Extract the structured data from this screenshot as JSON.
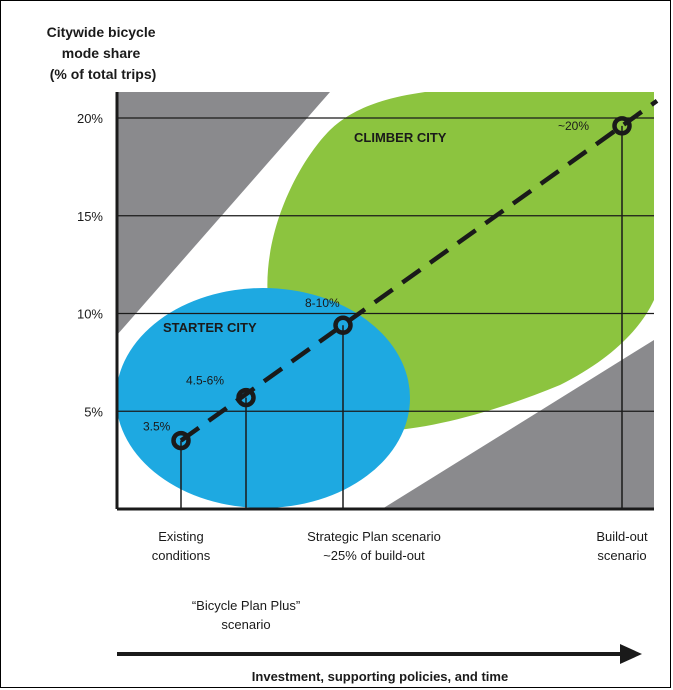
{
  "chart_data": {
    "type": "line",
    "ylabel_lines": [
      "Citywide bicycle",
      "mode share",
      "(% of total trips)"
    ],
    "xlabel": "Investment, supporting policies, and time",
    "yticks": [
      {
        "value": 5,
        "label": "5%"
      },
      {
        "value": 10,
        "label": "10%"
      },
      {
        "value": 15,
        "label": "15%"
      },
      {
        "value": 20,
        "label": "20%"
      }
    ],
    "ylim": [
      0,
      21
    ],
    "regions": [
      "STARTER CITY",
      "CLIMBER CITY"
    ],
    "points": [
      {
        "x": 1,
        "y": 3.5,
        "label": "3.5%",
        "scenario": [
          "Existing",
          "conditions"
        ]
      },
      {
        "x": 2,
        "y": 5.7,
        "label": "4.5-6%",
        "scenario": [
          "“Bicycle Plan Plus”",
          "scenario"
        ]
      },
      {
        "x": 3,
        "y": 9.4,
        "label": "8-10%",
        "scenario": [
          "Strategic Plan scenario",
          "~25% of build-out"
        ]
      },
      {
        "x": 4,
        "y": 19.6,
        "label": "~20%",
        "scenario": [
          "Build-out",
          "scenario"
        ]
      }
    ],
    "colors": {
      "starter": "#1ea9e1",
      "climber": "#8cc43f",
      "grey": "#8a8a8d",
      "line": "#1a1a1a"
    }
  }
}
